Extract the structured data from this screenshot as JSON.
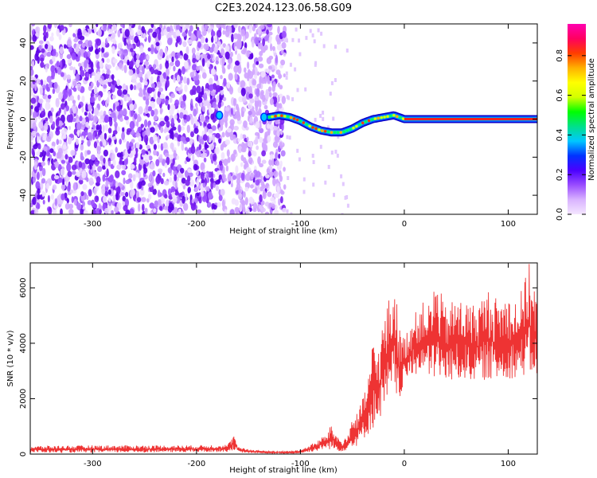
{
  "title": "C2E3.2024.123.06.58.G09",
  "colors": {
    "snr_line": "#ee3333",
    "signal_band": "#ee2222",
    "noise_dots": "#7a1ff0",
    "axis": "#000000",
    "colormap": [
      "#f4e6ff",
      "#d9b3ff",
      "#9a4dff",
      "#4b00ff",
      "#0033ff",
      "#00c8ff",
      "#00e08a",
      "#00ff00",
      "#d4ff00",
      "#ffff00",
      "#ffb000",
      "#ff3d00",
      "#ff0060",
      "#ff00b0"
    ]
  },
  "chart_data": [
    {
      "type": "heatmap",
      "title": "C2E3.2024.123.06.58.G09",
      "xlabel": "Height of straight line (km)",
      "ylabel": "Frequency (Hz)",
      "xlim": [
        -360,
        128
      ],
      "ylim": [
        -50,
        50
      ],
      "x_ticks": [
        -300,
        -200,
        -100,
        0,
        100
      ],
      "x_tick_labels": [
        "-300",
        "-200",
        "-100",
        "0",
        "100"
      ],
      "y_ticks": [
        -40,
        -20,
        0,
        20,
        40
      ],
      "y_tick_labels": [
        "-40",
        "-20",
        "0",
        "20",
        "40"
      ],
      "colorbar": {
        "label": "Normalized spectral amplitude",
        "range": [
          0.0,
          0.96
        ],
        "ticks": [
          0.0,
          0.2,
          0.4,
          0.6,
          0.8
        ],
        "tick_labels": [
          "0.0",
          "0.2",
          "0.4",
          "0.6",
          "0.8"
        ]
      },
      "noise_region_x": [
        -360,
        -115
      ],
      "signal_ridge": {
        "x": [
          -130,
          -120,
          -110,
          -100,
          -90,
          -80,
          -70,
          -60,
          -50,
          -40,
          -30,
          -20,
          -10,
          0,
          20,
          40,
          60,
          80,
          100,
          128
        ],
        "frequency": [
          1,
          2,
          1,
          -1,
          -4,
          -6,
          -7,
          -7,
          -5,
          -2,
          0,
          1,
          2,
          0,
          0,
          0,
          0,
          0,
          0,
          0
        ]
      }
    },
    {
      "type": "line",
      "xlabel": "Height of straight line (km)",
      "ylabel": "SNR (10 * v/v)",
      "xlim": [
        -360,
        128
      ],
      "ylim": [
        0,
        6900
      ],
      "x_ticks": [
        -300,
        -200,
        -100,
        0,
        100
      ],
      "x_tick_labels": [
        "-300",
        "-200",
        "-100",
        "0",
        "100"
      ],
      "y_ticks": [
        0,
        2000,
        4000,
        6000
      ],
      "y_tick_labels": [
        "0",
        "2000",
        "4000",
        "6000"
      ],
      "series": [
        {
          "x": [
            -360,
            -300,
            -250,
            -200,
            -170,
            -164,
            -160,
            -150,
            -130,
            -110,
            -100,
            -95,
            -90,
            -85,
            -80,
            -75,
            -70,
            -65,
            -60,
            -55,
            -50,
            -45,
            -40,
            -35,
            -30,
            -25,
            -20,
            -15,
            -10,
            -5,
            0,
            5,
            10,
            15,
            20,
            25,
            30,
            40,
            50,
            60,
            70,
            80,
            90,
            100,
            110,
            120,
            128
          ],
          "low": [
            50,
            50,
            60,
            70,
            80,
            150,
            60,
            40,
            30,
            20,
            30,
            60,
            80,
            100,
            150,
            200,
            150,
            100,
            100,
            150,
            250,
            300,
            500,
            700,
            900,
            1200,
            1500,
            1700,
            2000,
            1900,
            2500,
            2700,
            2800,
            3000,
            2800,
            2700,
            2700,
            2600,
            2600,
            2700,
            2600,
            2700,
            2600,
            2700,
            2800,
            2800,
            2800
          ],
          "high": [
            300,
            320,
            320,
            320,
            350,
            700,
            250,
            180,
            100,
            110,
            150,
            250,
            350,
            450,
            600,
            700,
            1100,
            700,
            500,
            600,
            1400,
            1500,
            2000,
            2800,
            4200,
            3800,
            5000,
            5600,
            6600,
            4600,
            4200,
            4800,
            5100,
            5300,
            5600,
            5400,
            6400,
            5300,
            5700,
            5500,
            5400,
            6000,
            5600,
            5800,
            5600,
            6900,
            5800
          ]
        }
      ]
    }
  ]
}
